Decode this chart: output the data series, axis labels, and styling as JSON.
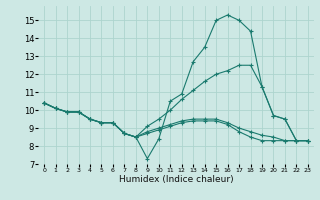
{
  "xlabel": "Humidex (Indice chaleur)",
  "background_color": "#cde8e4",
  "grid_color": "#add4ce",
  "line_color": "#1a7a6e",
  "xlim": [
    -0.5,
    23.5
  ],
  "ylim": [
    7,
    15.8
  ],
  "yticks": [
    7,
    8,
    9,
    10,
    11,
    12,
    13,
    14,
    15
  ],
  "xticks": [
    0,
    1,
    2,
    3,
    4,
    5,
    6,
    7,
    8,
    9,
    10,
    11,
    12,
    13,
    14,
    15,
    16,
    17,
    18,
    19,
    20,
    21,
    22,
    23
  ],
  "line1_x": [
    0,
    1,
    2,
    3,
    4,
    5,
    6,
    7,
    8,
    9,
    10,
    11,
    12,
    13,
    14,
    15,
    16,
    17,
    18,
    19,
    20,
    21,
    22,
    23
  ],
  "line1_y": [
    10.4,
    10.1,
    9.9,
    9.9,
    9.5,
    9.3,
    9.3,
    8.7,
    8.5,
    7.3,
    8.4,
    10.5,
    10.9,
    12.7,
    13.5,
    15.0,
    15.3,
    15.0,
    14.4,
    11.3,
    9.7,
    9.5,
    8.3,
    8.3
  ],
  "line2_x": [
    0,
    1,
    2,
    3,
    4,
    5,
    6,
    7,
    8,
    9,
    10,
    11,
    12,
    13,
    14,
    15,
    16,
    17,
    18,
    19,
    20,
    21,
    22,
    23
  ],
  "line2_y": [
    10.4,
    10.1,
    9.9,
    9.9,
    9.5,
    9.3,
    9.3,
    8.7,
    8.5,
    9.1,
    9.5,
    10.0,
    10.6,
    11.1,
    11.6,
    12.0,
    12.2,
    12.5,
    12.5,
    11.3,
    9.7,
    9.5,
    8.3,
    8.3
  ],
  "line3_x": [
    0,
    1,
    2,
    3,
    4,
    5,
    6,
    7,
    8,
    9,
    10,
    11,
    12,
    13,
    14,
    15,
    16,
    17,
    18,
    19,
    20,
    21,
    22,
    23
  ],
  "line3_y": [
    10.4,
    10.1,
    9.9,
    9.9,
    9.5,
    9.3,
    9.3,
    8.7,
    8.5,
    8.8,
    9.0,
    9.2,
    9.4,
    9.5,
    9.5,
    9.5,
    9.3,
    9.0,
    8.8,
    8.6,
    8.5,
    8.3,
    8.3,
    8.3
  ],
  "line4_x": [
    0,
    1,
    2,
    3,
    4,
    5,
    6,
    7,
    8,
    9,
    10,
    11,
    12,
    13,
    14,
    15,
    16,
    17,
    18,
    19,
    20,
    21,
    22,
    23
  ],
  "line4_y": [
    10.4,
    10.1,
    9.9,
    9.9,
    9.5,
    9.3,
    9.3,
    8.7,
    8.5,
    8.7,
    8.9,
    9.1,
    9.3,
    9.4,
    9.4,
    9.4,
    9.2,
    8.8,
    8.5,
    8.3,
    8.3,
    8.3,
    8.3,
    8.3
  ]
}
